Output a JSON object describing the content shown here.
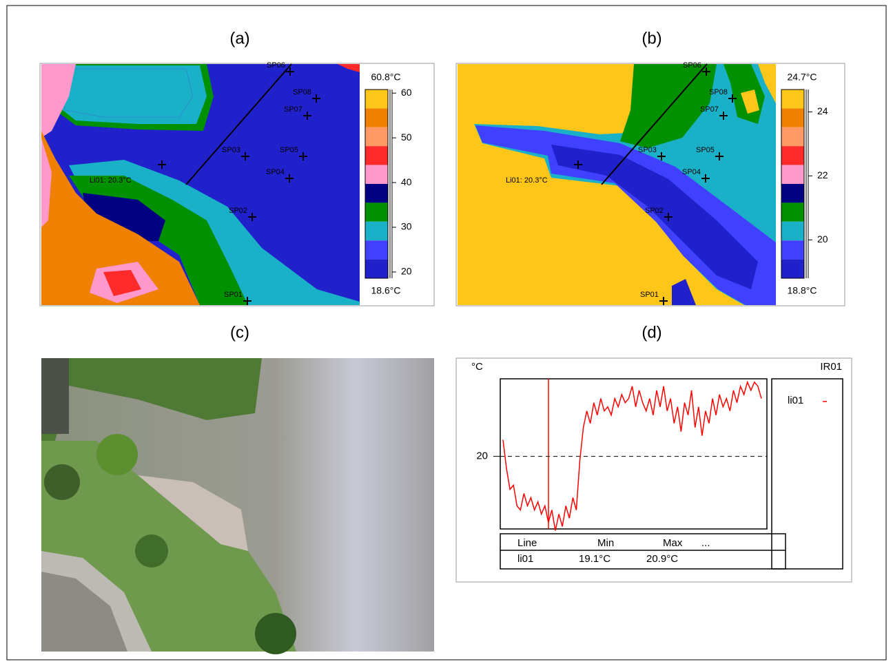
{
  "figure": {
    "panels": {
      "a": {
        "label": "(a)",
        "clim": [
          18.6,
          60.8
        ],
        "clim_labels": [
          "18.6°C",
          "60.8°C"
        ],
        "cticks": [
          20,
          30,
          40,
          50,
          60
        ],
        "line_label": "Li01: 20.3°C",
        "spots": [
          "SP06",
          "SP08",
          "SP07",
          "SP03",
          "SP05",
          "SP04",
          "SP02",
          "SP01"
        ]
      },
      "b": {
        "label": "(b)",
        "clim": [
          18.8,
          24.7
        ],
        "clim_labels": [
          "18.8°C",
          "24.7°C"
        ],
        "cticks": [
          20,
          22,
          24
        ],
        "line_label": "Li01: 20.3°C",
        "spots": [
          "SP06",
          "SP08",
          "SP07",
          "SP03",
          "SP05",
          "SP04",
          "SP02",
          "SP01"
        ]
      },
      "c": {
        "label": "(c)"
      },
      "d": {
        "label": "(d)"
      }
    }
  },
  "chart_data": {
    "type": "line",
    "y_unit": "°C",
    "title": "IR01",
    "ylim": [
      19.12,
      20.94
    ],
    "yticks": [
      20
    ],
    "grid": true,
    "series": [
      {
        "name": "li01",
        "color": "#ff0000",
        "values": [
          20.2,
          19.85,
          19.6,
          19.65,
          19.4,
          19.35,
          19.55,
          19.4,
          19.5,
          19.35,
          19.45,
          19.3,
          19.4,
          19.2,
          19.35,
          19.1,
          19.3,
          19.15,
          19.4,
          19.25,
          19.5,
          19.35,
          19.95,
          20.35,
          20.55,
          20.4,
          20.65,
          20.5,
          20.7,
          20.55,
          20.6,
          20.5,
          20.7,
          20.6,
          20.75,
          20.65,
          20.7,
          20.85,
          20.6,
          20.8,
          20.65,
          20.55,
          20.7,
          20.5,
          20.8,
          20.6,
          20.85,
          20.55,
          20.7,
          20.4,
          20.6,
          20.3,
          20.65,
          20.5,
          20.8,
          20.35,
          20.6,
          20.25,
          20.55,
          20.4,
          20.7,
          20.5,
          20.75,
          20.6,
          20.7,
          20.55,
          20.8,
          20.65,
          20.85,
          20.75,
          20.9,
          20.8,
          20.9,
          20.85,
          20.7
        ]
      }
    ]
  },
  "table": {
    "header": [
      "Line",
      "Min",
      "Max",
      "..."
    ],
    "rows": [
      [
        "li01",
        "19.1°C",
        "20.9°C"
      ]
    ]
  }
}
